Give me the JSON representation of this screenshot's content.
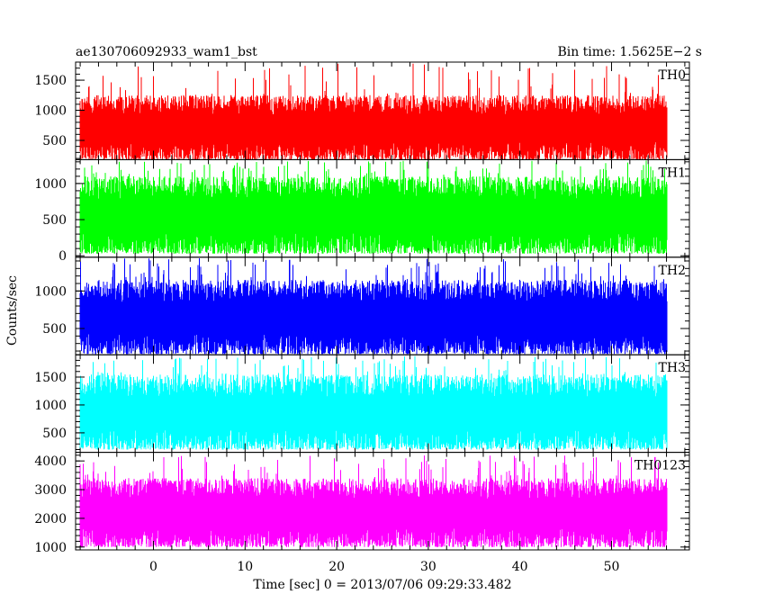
{
  "title_left": "ae130706092933_wam1_bst",
  "title_right": "Bin time: 1.5625E−2 s",
  "chart_data": {
    "type": "line",
    "ylabel": "Counts/sec",
    "xlabel": "Time [sec] 0 = 2013/07/06 09:29:33.482",
    "xlim": [
      -8.5,
      58.5
    ],
    "data_x_range": [
      -8.0,
      56.0
    ],
    "bin_time": 0.015625,
    "x_ticks": [
      0,
      10,
      20,
      30,
      40,
      50
    ],
    "panels": [
      {
        "name": "TH0",
        "color": "#ff0000",
        "ylim": [
          180,
          1800
        ],
        "y_ticks": [
          500,
          1000,
          1500
        ],
        "baseline": 180,
        "typical_max": 1250,
        "spike_max": 1780
      },
      {
        "name": "TH1",
        "color": "#00ff00",
        "ylim": [
          -20,
          1330
        ],
        "y_ticks": [
          0,
          500,
          1000
        ],
        "baseline": 30,
        "typical_max": 1100,
        "spike_max": 1320
      },
      {
        "name": "TH2",
        "color": "#0000ff",
        "ylim": [
          150,
          1450
        ],
        "y_ticks": [
          500,
          1000
        ],
        "baseline": 160,
        "typical_max": 1150,
        "spike_max": 1440
      },
      {
        "name": "TH3",
        "color": "#00ffff",
        "ylim": [
          150,
          1900
        ],
        "y_ticks": [
          500,
          1000,
          1500
        ],
        "baseline": 200,
        "typical_max": 1550,
        "spike_max": 1880
      },
      {
        "name": "TH0123",
        "color": "#ff00ff",
        "ylim": [
          900,
          4300
        ],
        "y_ticks": [
          1000,
          2000,
          3000,
          4000
        ],
        "baseline": 1000,
        "typical_max": 3400,
        "spike_max": 4200
      }
    ]
  }
}
